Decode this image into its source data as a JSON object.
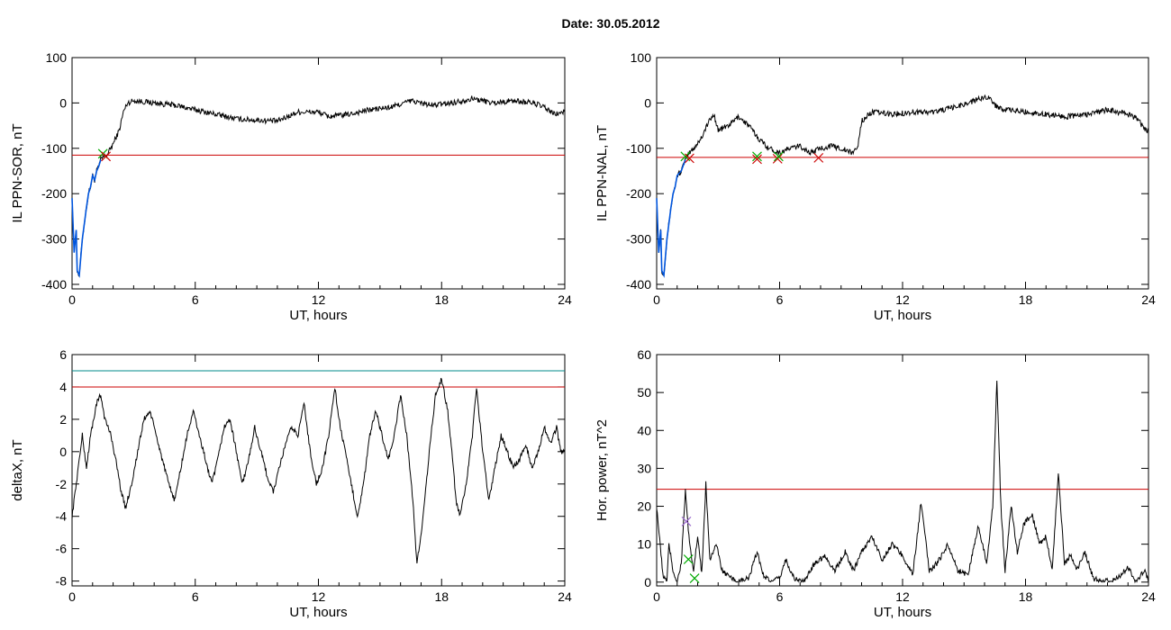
{
  "figure": {
    "title": "Date:  30.05.2012"
  },
  "colors": {
    "axes": "#000000",
    "trace": "#000000",
    "threshold_red": "#cc0000",
    "threshold_teal": "#008b8b",
    "onset_blue": "#0055dd",
    "marker_green": "#00aa00",
    "marker_red": "#cc0000",
    "marker_purple": "#9966cc"
  },
  "chart_data": [
    {
      "id": "p1",
      "type": "line",
      "xlabel": "UT, hours",
      "ylabel": "IL PPN-SOR, nT",
      "xlim": [
        0,
        24
      ],
      "ylim": [
        -410,
        100
      ],
      "xticks": [
        0,
        6,
        12,
        18,
        24
      ],
      "yticks": [
        -400,
        -300,
        -200,
        -100,
        0,
        100
      ],
      "threshold": -115,
      "knots": [
        [
          0,
          -210
        ],
        [
          0.1,
          -330
        ],
        [
          0.2,
          -280
        ],
        [
          0.25,
          -370
        ],
        [
          0.35,
          -380
        ],
        [
          0.5,
          -300
        ],
        [
          0.7,
          -230
        ],
        [
          0.8,
          -200
        ],
        [
          0.9,
          -185
        ],
        [
          1.0,
          -160
        ],
        [
          1.1,
          -170
        ],
        [
          1.2,
          -150
        ],
        [
          1.3,
          -140
        ],
        [
          1.4,
          -125
        ],
        [
          1.5,
          -120
        ],
        [
          1.7,
          -115
        ],
        [
          2.0,
          -90
        ],
        [
          2.3,
          -60
        ],
        [
          2.5,
          -20
        ],
        [
          2.7,
          0
        ],
        [
          3.0,
          5
        ],
        [
          4.0,
          0
        ],
        [
          5.0,
          -5
        ],
        [
          6.0,
          -15
        ],
        [
          7.0,
          -25
        ],
        [
          8.0,
          -35
        ],
        [
          9.0,
          -38
        ],
        [
          10.0,
          -40
        ],
        [
          10.5,
          -30
        ],
        [
          11.0,
          -20
        ],
        [
          12.0,
          -20
        ],
        [
          12.5,
          -30
        ],
        [
          13.5,
          -25
        ],
        [
          14.5,
          -15
        ],
        [
          15.5,
          -10
        ],
        [
          16.5,
          5
        ],
        [
          17.5,
          -5
        ],
        [
          18.5,
          0
        ],
        [
          19.5,
          10
        ],
        [
          20.5,
          0
        ],
        [
          21.5,
          5
        ],
        [
          22.5,
          0
        ],
        [
          23.0,
          -10
        ],
        [
          23.5,
          -25
        ],
        [
          24,
          -20
        ]
      ],
      "onset": [
        [
          0,
          -210
        ],
        [
          0.1,
          -330
        ],
        [
          0.2,
          -280
        ],
        [
          0.25,
          -370
        ],
        [
          0.35,
          -380
        ],
        [
          0.5,
          -300
        ],
        [
          0.7,
          -230
        ],
        [
          0.8,
          -200
        ],
        [
          0.9,
          -185
        ],
        [
          1.0,
          -160
        ],
        [
          1.1,
          -170
        ],
        [
          1.2,
          -150
        ],
        [
          1.3,
          -140
        ],
        [
          1.4,
          -125
        ]
      ],
      "markers": [
        {
          "x": 1.5,
          "y": -112,
          "color": "marker_green"
        },
        {
          "x": 1.65,
          "y": -118,
          "color": "marker_red"
        }
      ]
    },
    {
      "id": "p2",
      "type": "line",
      "xlabel": "UT, hours",
      "ylabel": "IL PPN-NAL, nT",
      "xlim": [
        0,
        24
      ],
      "ylim": [
        -410,
        100
      ],
      "xticks": [
        0,
        6,
        12,
        18,
        24
      ],
      "yticks": [
        -400,
        -300,
        -200,
        -100,
        0,
        100
      ],
      "threshold": -120,
      "knots": [
        [
          0,
          -210
        ],
        [
          0.1,
          -330
        ],
        [
          0.2,
          -280
        ],
        [
          0.25,
          -370
        ],
        [
          0.35,
          -380
        ],
        [
          0.5,
          -300
        ],
        [
          0.7,
          -230
        ],
        [
          0.8,
          -200
        ],
        [
          0.9,
          -185
        ],
        [
          1.0,
          -160
        ],
        [
          1.2,
          -150
        ],
        [
          1.4,
          -125
        ],
        [
          1.6,
          -110
        ],
        [
          1.9,
          -95
        ],
        [
          2.2,
          -75
        ],
        [
          2.5,
          -45
        ],
        [
          2.8,
          -25
        ],
        [
          3.0,
          -60
        ],
        [
          3.5,
          -50
        ],
        [
          4.0,
          -30
        ],
        [
          4.5,
          -50
        ],
        [
          5.0,
          -80
        ],
        [
          5.5,
          -100
        ],
        [
          6.0,
          -110
        ],
        [
          6.5,
          -100
        ],
        [
          7.0,
          -95
        ],
        [
          7.5,
          -110
        ],
        [
          8.0,
          -100
        ],
        [
          8.5,
          -95
        ],
        [
          9.0,
          -100
        ],
        [
          9.5,
          -110
        ],
        [
          9.8,
          -100
        ],
        [
          10.0,
          -40
        ],
        [
          10.5,
          -20
        ],
        [
          11.5,
          -25
        ],
        [
          12.5,
          -20
        ],
        [
          13.5,
          -20
        ],
        [
          14.5,
          -10
        ],
        [
          15.5,
          5
        ],
        [
          16.2,
          15
        ],
        [
          16.5,
          -5
        ],
        [
          17.0,
          -15
        ],
        [
          18.0,
          -20
        ],
        [
          19.0,
          -25
        ],
        [
          20.0,
          -30
        ],
        [
          21.0,
          -25
        ],
        [
          22.0,
          -15
        ],
        [
          22.5,
          -20
        ],
        [
          23.0,
          -25
        ],
        [
          23.5,
          -35
        ],
        [
          23.8,
          -60
        ],
        [
          24,
          -60
        ]
      ],
      "onset": [
        [
          0,
          -210
        ],
        [
          0.1,
          -330
        ],
        [
          0.2,
          -280
        ],
        [
          0.25,
          -370
        ],
        [
          0.35,
          -380
        ],
        [
          0.5,
          -300
        ],
        [
          0.7,
          -230
        ],
        [
          0.8,
          -200
        ],
        [
          0.9,
          -185
        ],
        [
          1.0,
          -160
        ],
        [
          1.2,
          -150
        ],
        [
          1.4,
          -125
        ]
      ],
      "markers": [
        {
          "x": 1.4,
          "y": -118,
          "color": "marker_green"
        },
        {
          "x": 1.6,
          "y": -122,
          "color": "marker_red"
        },
        {
          "x": 4.9,
          "y": -118,
          "color": "marker_green"
        },
        {
          "x": 4.9,
          "y": -124,
          "color": "marker_red"
        },
        {
          "x": 5.9,
          "y": -123,
          "color": "marker_red"
        },
        {
          "x": 5.95,
          "y": -118,
          "color": "marker_green"
        },
        {
          "x": 7.9,
          "y": -121,
          "color": "marker_red"
        }
      ]
    },
    {
      "id": "p3",
      "type": "line",
      "xlabel": "UT, hours",
      "ylabel": "deltaX, nT",
      "xlim": [
        0,
        24
      ],
      "ylim": [
        -8.3,
        6
      ],
      "xticks": [
        0,
        6,
        12,
        18,
        24
      ],
      "yticks": [
        -8,
        -6,
        -4,
        -2,
        0,
        2,
        4,
        6
      ],
      "threshold": 4.0,
      "threshold2": 5.0,
      "knots": [
        [
          0,
          -4
        ],
        [
          0.3,
          -1
        ],
        [
          0.5,
          1
        ],
        [
          0.7,
          -1
        ],
        [
          0.9,
          1
        ],
        [
          1.2,
          3
        ],
        [
          1.4,
          3.5
        ],
        [
          1.6,
          2
        ],
        [
          1.9,
          1
        ],
        [
          2.2,
          -1
        ],
        [
          2.4,
          -2.5
        ],
        [
          2.6,
          -3.5
        ],
        [
          2.9,
          -2
        ],
        [
          3.2,
          0
        ],
        [
          3.5,
          2
        ],
        [
          3.8,
          2.5
        ],
        [
          4.1,
          1
        ],
        [
          4.4,
          -0.5
        ],
        [
          4.7,
          -2
        ],
        [
          5.0,
          -3
        ],
        [
          5.3,
          -1
        ],
        [
          5.6,
          1
        ],
        [
          5.9,
          2.5
        ],
        [
          6.2,
          1
        ],
        [
          6.5,
          -0.5
        ],
        [
          6.8,
          -2
        ],
        [
          7.1,
          -0.5
        ],
        [
          7.4,
          1.5
        ],
        [
          7.7,
          2
        ],
        [
          8.0,
          0
        ],
        [
          8.3,
          -2
        ],
        [
          8.6,
          -0.5
        ],
        [
          8.9,
          1.5
        ],
        [
          9.2,
          0
        ],
        [
          9.5,
          -1.5
        ],
        [
          9.8,
          -2.5
        ],
        [
          10.1,
          -1
        ],
        [
          10.4,
          0.5
        ],
        [
          10.7,
          1.5
        ],
        [
          11.0,
          1
        ],
        [
          11.3,
          3
        ],
        [
          11.6,
          0
        ],
        [
          11.9,
          -2
        ],
        [
          12.2,
          -1
        ],
        [
          12.5,
          1
        ],
        [
          12.8,
          4
        ],
        [
          13.0,
          2
        ],
        [
          13.3,
          0
        ],
        [
          13.6,
          -2
        ],
        [
          13.9,
          -4
        ],
        [
          14.2,
          -2
        ],
        [
          14.5,
          1
        ],
        [
          14.8,
          2.5
        ],
        [
          15.1,
          1
        ],
        [
          15.4,
          -0.5
        ],
        [
          15.7,
          1
        ],
        [
          16.0,
          3.5
        ],
        [
          16.3,
          1
        ],
        [
          16.6,
          -3
        ],
        [
          16.8,
          -7
        ],
        [
          17.1,
          -4
        ],
        [
          17.4,
          0
        ],
        [
          17.7,
          3.5
        ],
        [
          18.0,
          4.5
        ],
        [
          18.3,
          2.5
        ],
        [
          18.5,
          0
        ],
        [
          18.7,
          -3
        ],
        [
          18.9,
          -4
        ],
        [
          19.2,
          -2
        ],
        [
          19.5,
          1
        ],
        [
          19.7,
          4
        ],
        [
          20.0,
          0
        ],
        [
          20.3,
          -3
        ],
        [
          20.6,
          -1
        ],
        [
          20.9,
          1
        ],
        [
          21.2,
          0
        ],
        [
          21.5,
          -1
        ],
        [
          21.8,
          -0.5
        ],
        [
          22.1,
          0.5
        ],
        [
          22.4,
          -1
        ],
        [
          22.7,
          0
        ],
        [
          23.0,
          1.5
        ],
        [
          23.3,
          0.5
        ],
        [
          23.6,
          1.5
        ],
        [
          23.8,
          0
        ],
        [
          24,
          0
        ]
      ],
      "markers": []
    },
    {
      "id": "p4",
      "type": "line",
      "xlabel": "UT, hours",
      "ylabel": "Hor. power, nT^2",
      "xlim": [
        0,
        24
      ],
      "ylim": [
        -1,
        60
      ],
      "xticks": [
        0,
        6,
        12,
        18,
        24
      ],
      "yticks": [
        0,
        10,
        20,
        30,
        40,
        50,
        60
      ],
      "threshold": 24.5,
      "knots": [
        [
          0,
          20
        ],
        [
          0.3,
          2
        ],
        [
          0.5,
          0
        ],
        [
          0.6,
          10
        ],
        [
          0.8,
          3
        ],
        [
          1.0,
          0
        ],
        [
          1.2,
          5
        ],
        [
          1.4,
          24
        ],
        [
          1.6,
          10
        ],
        [
          1.8,
          3
        ],
        [
          2.0,
          12
        ],
        [
          2.2,
          2
        ],
        [
          2.4,
          26
        ],
        [
          2.6,
          6
        ],
        [
          2.9,
          10
        ],
        [
          3.2,
          3
        ],
        [
          3.6,
          1
        ],
        [
          4.0,
          0
        ],
        [
          4.5,
          1
        ],
        [
          4.9,
          8
        ],
        [
          5.2,
          2
        ],
        [
          5.6,
          0
        ],
        [
          6.0,
          1
        ],
        [
          6.3,
          6
        ],
        [
          6.7,
          1
        ],
        [
          7.2,
          0
        ],
        [
          7.7,
          5
        ],
        [
          8.2,
          7
        ],
        [
          8.7,
          3
        ],
        [
          9.2,
          8
        ],
        [
          9.6,
          3
        ],
        [
          10.0,
          8
        ],
        [
          10.5,
          12
        ],
        [
          11.0,
          6
        ],
        [
          11.5,
          10
        ],
        [
          12.0,
          7
        ],
        [
          12.5,
          2
        ],
        [
          12.9,
          21
        ],
        [
          13.3,
          3
        ],
        [
          13.7,
          5
        ],
        [
          14.2,
          10
        ],
        [
          14.7,
          3
        ],
        [
          15.2,
          2
        ],
        [
          15.7,
          15
        ],
        [
          16.1,
          5
        ],
        [
          16.4,
          20
        ],
        [
          16.6,
          53
        ],
        [
          16.8,
          20
        ],
        [
          17.0,
          3
        ],
        [
          17.3,
          20
        ],
        [
          17.6,
          8
        ],
        [
          17.9,
          15
        ],
        [
          18.3,
          18
        ],
        [
          18.7,
          10
        ],
        [
          19.0,
          12
        ],
        [
          19.3,
          3
        ],
        [
          19.6,
          29
        ],
        [
          19.9,
          5
        ],
        [
          20.2,
          7
        ],
        [
          20.5,
          3
        ],
        [
          20.9,
          8
        ],
        [
          21.3,
          1
        ],
        [
          21.8,
          0
        ],
        [
          22.5,
          1
        ],
        [
          23.0,
          4
        ],
        [
          23.4,
          0
        ],
        [
          23.8,
          3
        ],
        [
          24,
          0
        ]
      ],
      "markers": [
        {
          "x": 1.45,
          "y": 16,
          "color": "marker_purple"
        },
        {
          "x": 1.55,
          "y": 6,
          "color": "marker_green"
        },
        {
          "x": 1.85,
          "y": 1,
          "color": "marker_green"
        }
      ]
    }
  ]
}
